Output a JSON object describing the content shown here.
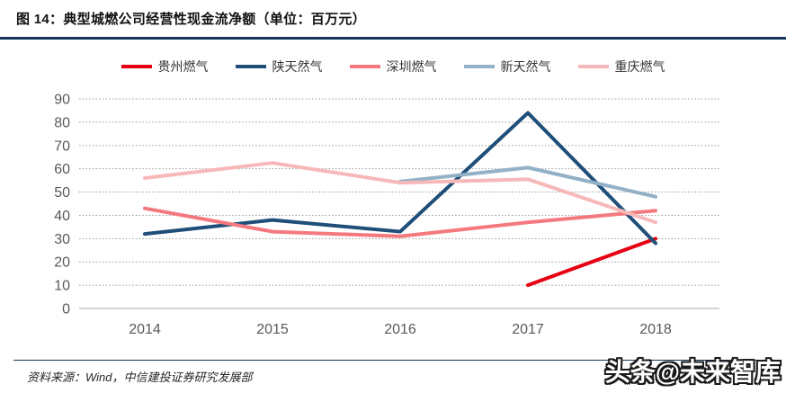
{
  "header": {
    "title": "图  14：典型城燃公司经营性现金流净额（单位：百万元）"
  },
  "footer": {
    "source": "资料来源：Wind，中信建投证券研究发展部",
    "watermark": "头条@未来智库"
  },
  "colors": {
    "rule": "#16365c",
    "axis_text": "#595959",
    "gridline": "#9b9b9b",
    "baseline": "#c6c6c6"
  },
  "chart_data": {
    "type": "line",
    "title": "典型城燃公司经营性现金流净额",
    "unit": "百万元",
    "categories": [
      "2014",
      "2015",
      "2016",
      "2017",
      "2018"
    ],
    "series": [
      {
        "name": "贵州燃气",
        "color": "#e60012",
        "values": [
          null,
          null,
          null,
          10,
          30
        ]
      },
      {
        "name": "陕天然气",
        "color": "#1f4e79",
        "values": [
          32,
          38,
          33,
          84,
          28
        ]
      },
      {
        "name": "深圳燃气",
        "color": "#f4797e",
        "values": [
          43,
          33,
          31,
          37,
          42
        ]
      },
      {
        "name": "新天然气",
        "color": "#92b1c7",
        "values": [
          null,
          null,
          54.5,
          60.5,
          48
        ]
      },
      {
        "name": "重庆燃气",
        "color": "#f7b8ba",
        "values": [
          56,
          62.5,
          54,
          55.5,
          37
        ]
      }
    ],
    "ylim": [
      0,
      90
    ],
    "ytick_step": 10,
    "xlabel": "",
    "ylabel": "",
    "grid": "horizontal-dotted",
    "legend_position": "top-center"
  }
}
